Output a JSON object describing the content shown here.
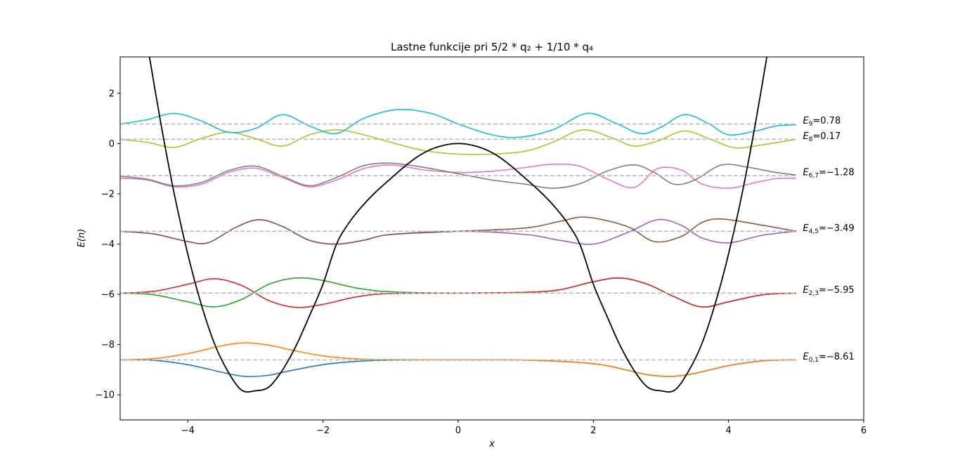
{
  "chart_data": {
    "type": "line",
    "title": "Lastne funkcije pri 5/2 * q₂ + 1/10 * q₄",
    "xlabel": "x",
    "ylabel": "E(n)",
    "xlim": [
      -5,
      6
    ],
    "ylim": [
      -11,
      3.45
    ],
    "xticks": [
      "−4",
      "−2",
      "0",
      "2",
      "4",
      "6"
    ],
    "yticks": [
      "−10",
      "−8",
      "−6",
      "−4",
      "−2",
      "0",
      "2"
    ],
    "grid": false,
    "potential": {
      "color": "#000000",
      "x": [
        -4.6,
        -4.4,
        -4.2,
        -4.0,
        -3.8,
        -3.6,
        -3.4,
        -3.2,
        -3.0,
        -2.8,
        -2.6,
        -2.4,
        -2.2,
        -2.0,
        -1.8,
        -1.6,
        -1.4,
        -1.2,
        -1.0,
        -0.8,
        -0.6,
        -0.4,
        -0.2,
        0.0,
        0.2,
        0.4,
        0.6,
        0.8,
        1.0,
        1.2,
        1.4,
        1.6,
        1.8,
        2.0,
        2.2,
        2.4,
        2.6,
        2.8,
        3.0,
        3.2,
        3.4,
        3.6,
        3.8,
        4.0,
        4.2,
        4.4,
        4.6
      ],
      "y": [
        3.97,
        0.83,
        -2.0,
        -4.4,
        -6.4,
        -8.0,
        -9.1,
        -9.82,
        -9.84,
        -9.69,
        -9.02,
        -8.06,
        -6.86,
        -5.6,
        -4.0,
        -3.1,
        -2.43,
        -1.88,
        -1.4,
        -0.93,
        -0.52,
        -0.23,
        -0.06,
        0.0,
        -0.06,
        -0.23,
        -0.52,
        -0.93,
        -1.4,
        -1.88,
        -2.43,
        -3.1,
        -4.0,
        -5.6,
        -6.86,
        -8.06,
        -9.02,
        -9.69,
        -9.84,
        -9.82,
        -9.1,
        -8.0,
        -6.4,
        -4.4,
        -2.0,
        0.83,
        3.97
      ]
    },
    "levels": [
      {
        "value": 0.78,
        "label_sub": "9",
        "label_value": "=0.78"
      },
      {
        "value": 0.17,
        "label_sub": "8",
        "label_value": "=0.17"
      },
      {
        "value": -1.28,
        "label_sub": "6,7",
        "label_value": "=−1.28"
      },
      {
        "value": -3.49,
        "label_sub": "4,5",
        "label_value": "=−3.49"
      },
      {
        "value": -5.95,
        "label_sub": "2,3",
        "label_value": "=−5.95"
      },
      {
        "value": -8.61,
        "label_sub": "0,1",
        "label_value": "=−8.61"
      }
    ],
    "series": [
      {
        "color": "#1f77b4",
        "x": [
          -5,
          -4.5,
          -4,
          -3.5,
          -3.15,
          -2.8,
          -2.5,
          -2,
          -1.5,
          -1,
          0,
          1,
          2,
          2.5,
          2.8,
          3.15,
          3.5,
          4,
          4.5,
          5
        ],
        "y": [
          -8.61,
          -8.63,
          -8.8,
          -9.1,
          -9.27,
          -9.22,
          -9.05,
          -8.8,
          -8.67,
          -8.62,
          -8.61,
          -8.62,
          -8.76,
          -9.02,
          -9.2,
          -9.27,
          -9.15,
          -8.84,
          -8.65,
          -8.61
        ]
      },
      {
        "color": "#ff7f0e",
        "x": [
          -5,
          -4.5,
          -4,
          -3.5,
          -3.15,
          -2.8,
          -2.5,
          -2,
          -1.5,
          -1,
          0,
          1,
          2,
          2.5,
          2.8,
          3.15,
          3.5,
          4,
          4.5,
          5
        ],
        "y": [
          -8.61,
          -8.56,
          -8.36,
          -8.05,
          -7.93,
          -8.02,
          -8.2,
          -8.45,
          -8.57,
          -8.6,
          -8.61,
          -8.62,
          -8.76,
          -9.02,
          -9.2,
          -9.27,
          -9.15,
          -8.84,
          -8.65,
          -8.61
        ]
      },
      {
        "color": "#2ca02c",
        "x": [
          -5,
          -4.5,
          -4,
          -3.6,
          -3.2,
          -2.8,
          -2.4,
          -2,
          -1.5,
          -1,
          0,
          1,
          1.5,
          2,
          2.4,
          2.8,
          3.2,
          3.6,
          4,
          4.5,
          5
        ],
        "y": [
          -5.95,
          -6.02,
          -6.3,
          -6.5,
          -6.2,
          -5.6,
          -5.35,
          -5.45,
          -5.75,
          -5.9,
          -5.95,
          -5.92,
          -5.82,
          -5.5,
          -5.35,
          -5.6,
          -6.1,
          -6.5,
          -6.3,
          -6.02,
          -5.95
        ]
      },
      {
        "color": "#d62728",
        "x": [
          -5,
          -4.5,
          -4,
          -3.6,
          -3.2,
          -2.8,
          -2.4,
          -2,
          -1.5,
          -1,
          0,
          1,
          1.5,
          2,
          2.4,
          2.8,
          3.2,
          3.6,
          4,
          4.5,
          5
        ],
        "y": [
          -5.95,
          -5.88,
          -5.6,
          -5.38,
          -5.65,
          -6.25,
          -6.52,
          -6.4,
          -6.1,
          -5.97,
          -5.95,
          -5.92,
          -5.82,
          -5.5,
          -5.35,
          -5.6,
          -6.1,
          -6.5,
          -6.3,
          -6.02,
          -5.95
        ]
      },
      {
        "color": "#9467bd",
        "x": [
          -5,
          -4.5,
          -4,
          -3.7,
          -3.3,
          -2.95,
          -2.6,
          -2.2,
          -1.8,
          -1.4,
          -1,
          0,
          1,
          1.5,
          2,
          2.5,
          2.95,
          3.3,
          3.6,
          4,
          4.5,
          5
        ],
        "y": [
          -3.49,
          -3.6,
          -3.9,
          -3.95,
          -3.35,
          -3.03,
          -3.3,
          -3.85,
          -4.0,
          -3.85,
          -3.62,
          -3.49,
          -3.62,
          -3.85,
          -4.0,
          -3.55,
          -3.03,
          -3.25,
          -3.75,
          -3.95,
          -3.65,
          -3.49
        ]
      },
      {
        "color": "#8c564b",
        "x": [
          -5,
          -4.5,
          -4,
          -3.7,
          -3.3,
          -2.95,
          -2.6,
          -2.2,
          -1.8,
          -1.4,
          -1,
          0,
          1,
          1.5,
          1.9,
          2.5,
          2.9,
          3.3,
          3.6,
          3.9,
          4.5,
          5
        ],
        "y": [
          -3.49,
          -3.6,
          -3.9,
          -3.95,
          -3.35,
          -3.03,
          -3.3,
          -3.85,
          -4.0,
          -3.85,
          -3.62,
          -3.49,
          -3.36,
          -3.1,
          -2.93,
          -3.3,
          -3.9,
          -3.7,
          -3.15,
          -3.0,
          -3.25,
          -3.49
        ]
      },
      {
        "color": "#e377c2",
        "x": [
          -5,
          -4.6,
          -4.2,
          -3.8,
          -3.4,
          -3.0,
          -2.6,
          -2.2,
          -1.8,
          -1.4,
          -1.0,
          -0.5,
          0,
          0.5,
          1.0,
          1.4,
          1.8,
          2.2,
          2.6,
          2.95,
          3.3,
          3.6,
          4.0,
          4.4,
          4.7,
          5
        ],
        "y": [
          -1.38,
          -1.45,
          -1.72,
          -1.62,
          -1.15,
          -0.98,
          -1.35,
          -1.72,
          -1.45,
          -1.0,
          -0.85,
          -1.05,
          -1.15,
          -1.1,
          -0.95,
          -0.82,
          -0.9,
          -1.4,
          -1.75,
          -1.0,
          -1.05,
          -1.6,
          -1.78,
          -1.55,
          -1.4,
          -1.38
        ]
      },
      {
        "color": "#7f7f7f",
        "x": [
          -5,
          -4.6,
          -4.2,
          -3.8,
          -3.4,
          -3.0,
          -2.6,
          -2.2,
          -1.8,
          -1.4,
          -1.0,
          -0.5,
          0,
          0.5,
          1.0,
          1.4,
          1.8,
          2.2,
          2.6,
          2.9,
          3.2,
          3.5,
          3.9,
          4.3,
          4.7,
          5
        ],
        "y": [
          -1.3,
          -1.42,
          -1.68,
          -1.55,
          -1.08,
          -0.9,
          -1.3,
          -1.68,
          -1.35,
          -0.88,
          -0.78,
          -0.95,
          -1.2,
          -1.45,
          -1.62,
          -1.78,
          -1.6,
          -1.1,
          -0.85,
          -1.15,
          -1.62,
          -1.45,
          -0.85,
          -0.95,
          -1.15,
          -1.25
        ]
      },
      {
        "color": "#bcbd22",
        "x": [
          -5,
          -4.6,
          -4.2,
          -3.8,
          -3.4,
          -3.0,
          -2.6,
          -2.2,
          -1.8,
          -1.4,
          -1.0,
          -0.5,
          0,
          0.5,
          1.0,
          1.4,
          1.85,
          2.3,
          2.6,
          2.95,
          3.35,
          3.75,
          4.1,
          4.5,
          5
        ],
        "y": [
          0.17,
          0.05,
          -0.15,
          0.2,
          0.45,
          0.2,
          -0.1,
          0.35,
          0.55,
          0.35,
          0.05,
          -0.28,
          -0.42,
          -0.42,
          -0.3,
          0.05,
          0.55,
          0.2,
          -0.1,
          0.1,
          0.5,
          0.15,
          -0.17,
          -0.05,
          0.17
        ]
      },
      {
        "color": "#17becf",
        "x": [
          -5,
          -4.6,
          -4.2,
          -3.8,
          -3.4,
          -3.0,
          -2.6,
          -2.2,
          -1.8,
          -1.4,
          -0.9,
          -0.4,
          0,
          0.5,
          0.9,
          1.4,
          1.9,
          2.3,
          2.7,
          3.0,
          3.35,
          3.7,
          4.0,
          4.4,
          4.7,
          5
        ],
        "y": [
          0.78,
          0.95,
          1.2,
          0.9,
          0.45,
          0.6,
          1.15,
          0.7,
          0.4,
          1.0,
          1.35,
          1.2,
          0.78,
          0.35,
          0.25,
          0.55,
          1.2,
          0.85,
          0.4,
          0.65,
          1.15,
          0.8,
          0.35,
          0.5,
          0.7,
          0.75
        ]
      }
    ]
  }
}
